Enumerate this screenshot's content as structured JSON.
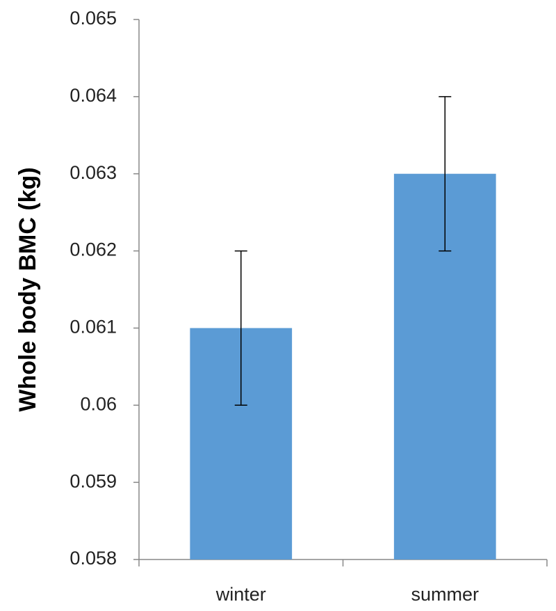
{
  "chart_data": {
    "type": "bar",
    "y_label": "Whole body BMC (kg)",
    "categories": [
      "winter",
      "summer"
    ],
    "values": [
      0.061,
      0.063
    ],
    "errors": [
      0.001,
      0.001
    ],
    "color": "#5b9bd5",
    "ylim": [
      0.058,
      0.065
    ],
    "yticks": [
      0.058,
      0.059,
      0.06,
      0.061,
      0.062,
      0.063,
      0.064,
      0.065
    ],
    "grid": false
  }
}
